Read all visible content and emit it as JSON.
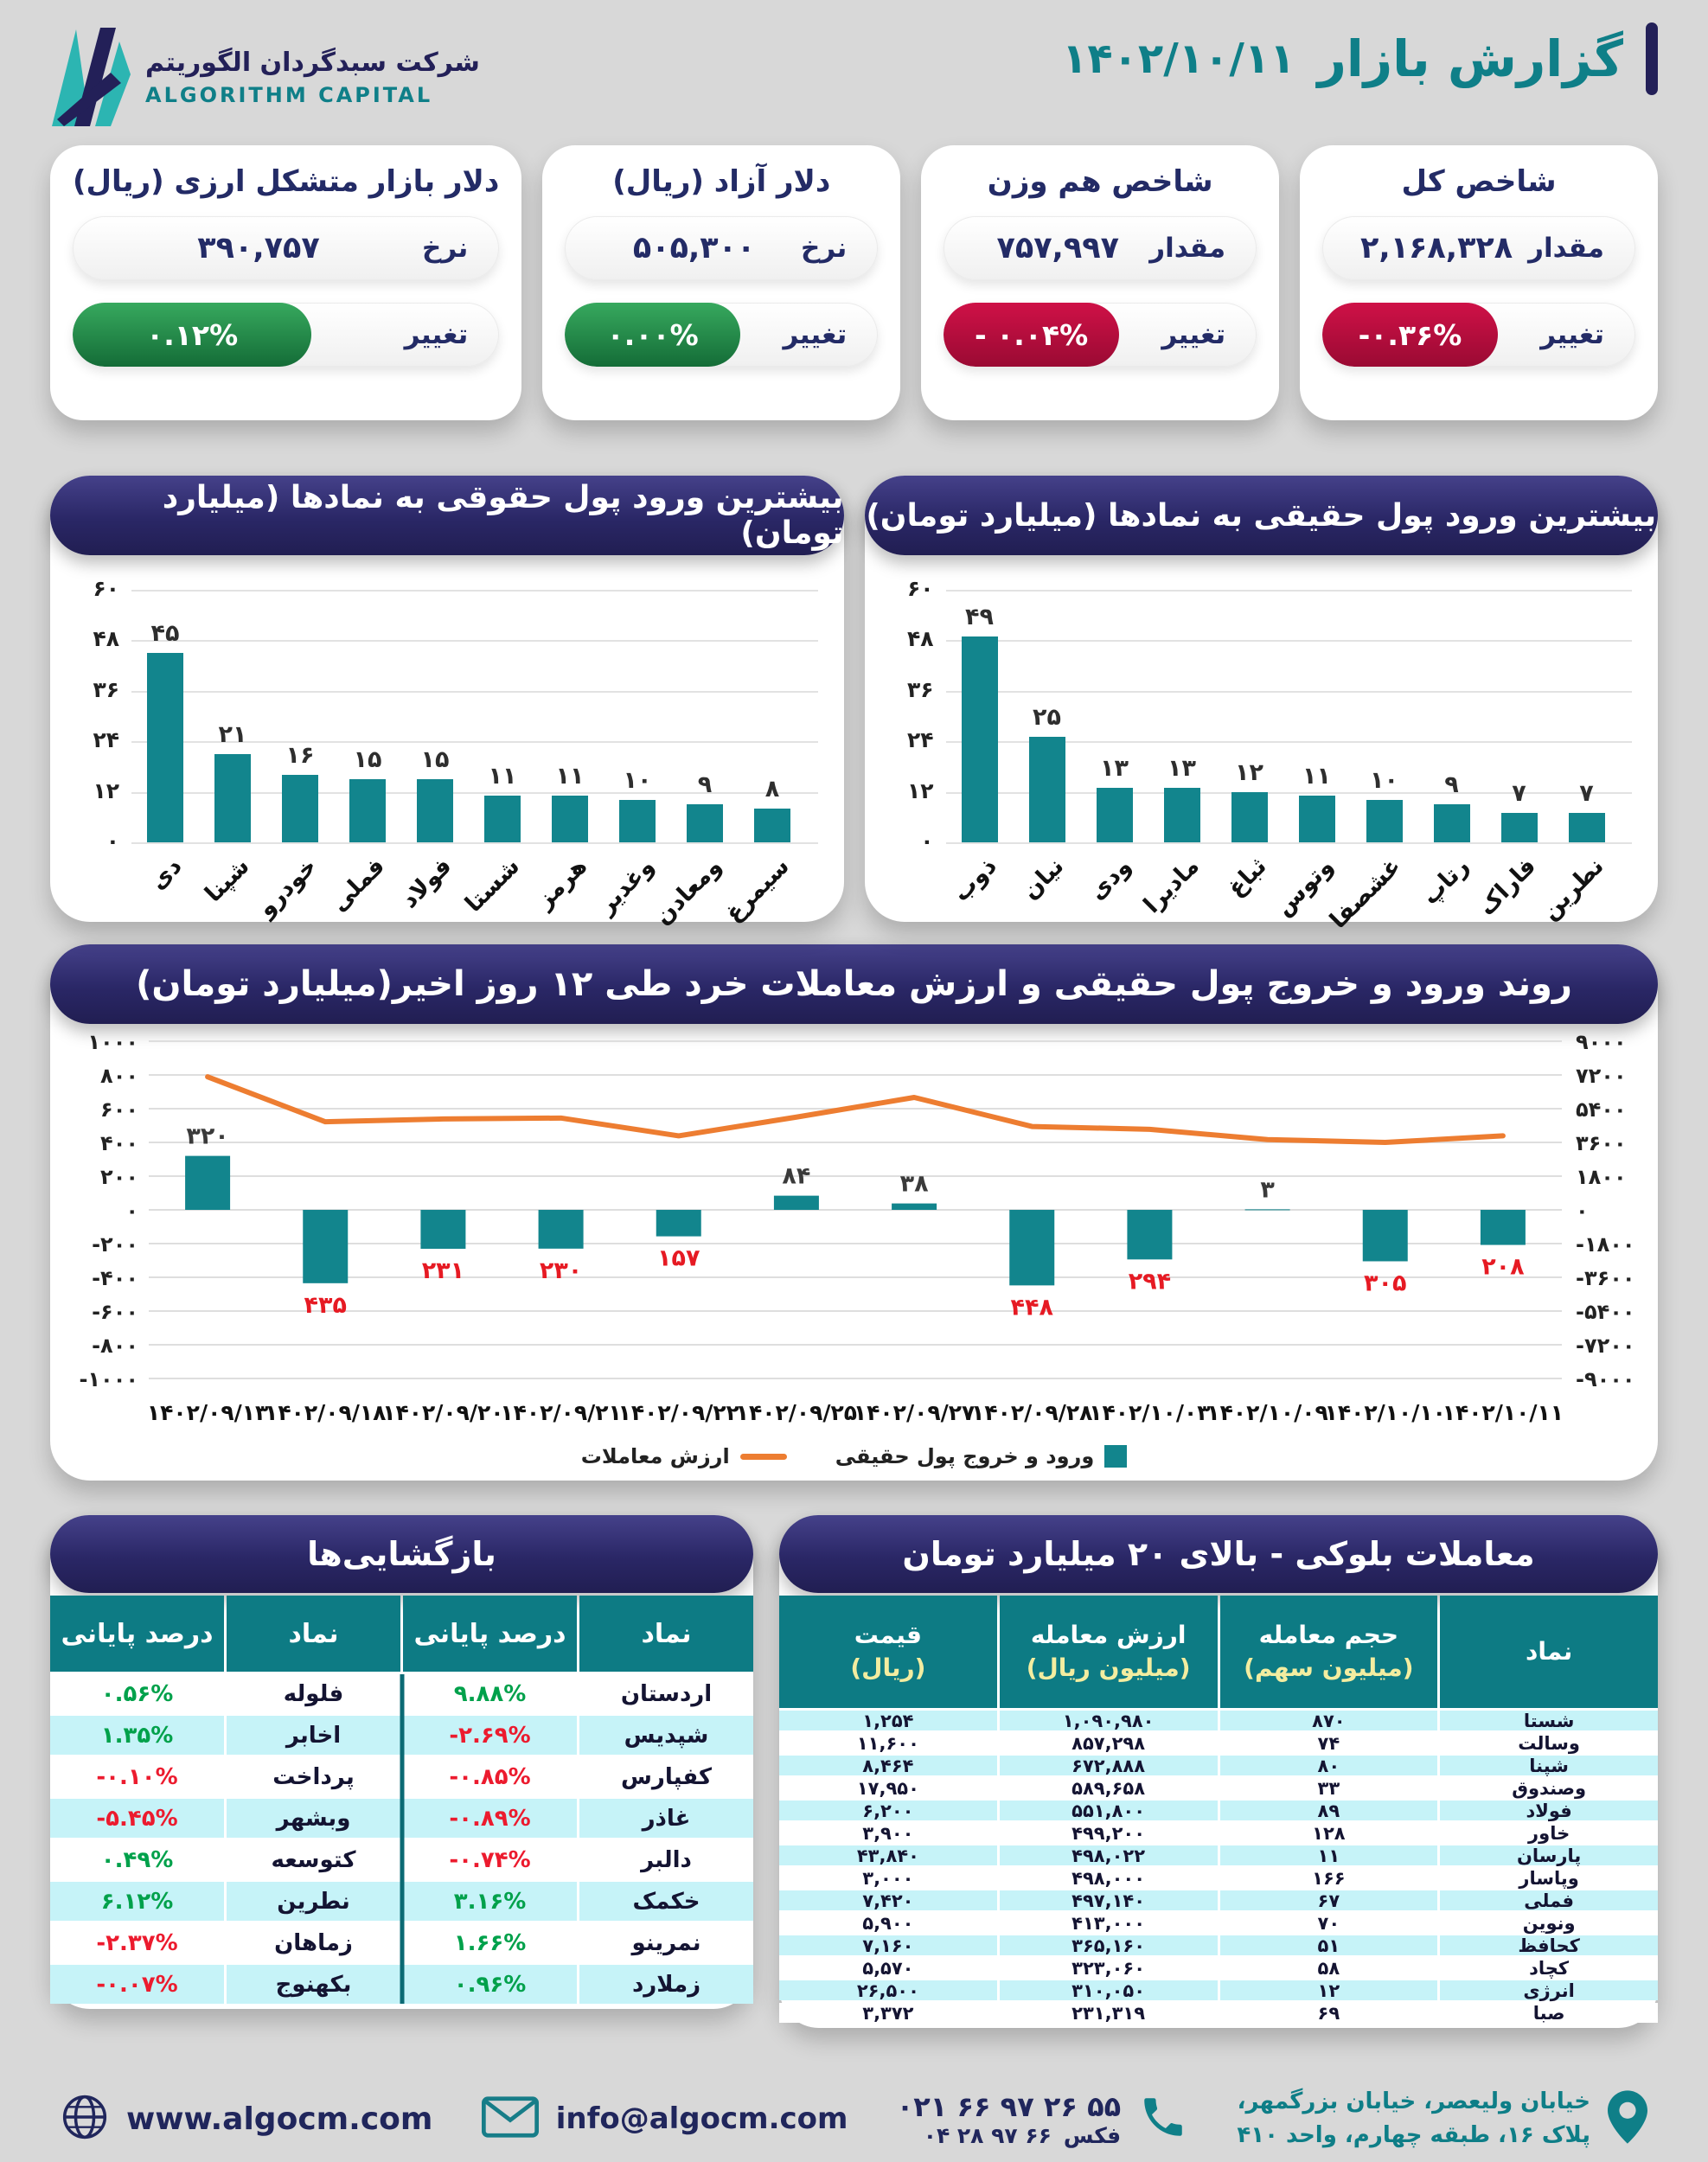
{
  "header": {
    "company_fa": "شرکت سبدگردان الگوریتم",
    "company_en": "ALGORITHM CAPITAL",
    "title": "گزارش بازار",
    "date": "۱۴۰۲/۱۰/۱۱"
  },
  "stat_cards": [
    {
      "title": "شاخص کل",
      "value_label": "مقدار",
      "value": "۲,۱۶۸,۳۲۸",
      "change_label": "تغییر",
      "change": "-۰.۳۶%",
      "direction": "down"
    },
    {
      "title": "شاخص هم وزن",
      "value_label": "مقدار",
      "value": "۷۵۷,۹۹۷",
      "change_label": "تغییر",
      "change": "- ۰.۰۴%",
      "direction": "down"
    },
    {
      "title": "دلار آزاد (ریال)",
      "value_label": "نرخ",
      "value": "۵۰۵,۳۰۰",
      "change_label": "تغییر",
      "change": "۰.۰۰%",
      "direction": "up"
    },
    {
      "title": "دلار بازار متشکل ارزی (ریال)",
      "value_label": "نرخ",
      "value": "۳۹۰,۷۵۷",
      "change_label": "تغییر",
      "change": "۰.۱۲%",
      "direction": "up"
    }
  ],
  "chart_data": [
    {
      "id": "legal-money-inflow",
      "type": "bar",
      "title": "بیشترین ورود پول حقوقی به نمادها (میلیارد تومان)",
      "categories": [
        "دی",
        "شپنا",
        "خودرو",
        "فملی",
        "فولاد",
        "شستا",
        "هرمز",
        "وغدیر",
        "ومعادن",
        "سیمرغ"
      ],
      "values": [
        45,
        21,
        16,
        15,
        15,
        11,
        11,
        10,
        9,
        8
      ],
      "ylim": [
        0,
        60
      ],
      "yticks": [
        60,
        48,
        36,
        24,
        12,
        0
      ],
      "bar_color": "#12858d",
      "grid": true
    },
    {
      "id": "real-money-inflow",
      "type": "bar",
      "title": "بیشترین ورود پول حقیقی به نمادها (میلیارد تومان)",
      "categories": [
        "ذوب",
        "نیان",
        "ودی",
        "مادیرا",
        "ثباغ",
        "وتوس",
        "غشصفا",
        "رتاپ",
        "فاراک",
        "نطرین"
      ],
      "values": [
        49,
        25,
        13,
        13,
        12,
        11,
        10,
        9,
        7,
        7
      ],
      "ylim": [
        0,
        60
      ],
      "yticks": [
        60,
        48,
        36,
        24,
        12,
        0
      ],
      "bar_color": "#12858d",
      "grid": true
    },
    {
      "id": "trend-12-days",
      "type": "bar+line",
      "title": "روند ورود و خروج پول حقیقی و ارزش معاملات خرد طی ۱۲ روز اخیر(میلیارد تومان)",
      "categories": [
        "۱۴۰۲/۰۹/۱۳",
        "۱۴۰۲/۰۹/۱۸",
        "۱۴۰۲/۰۹/۲۰",
        "۱۴۰۲/۰۹/۲۱",
        "۱۴۰۲/۰۹/۲۲",
        "۱۴۰۲/۰۹/۲۵",
        "۱۴۰۲/۰۹/۲۷",
        "۱۴۰۲/۰۹/۲۸",
        "۱۴۰۲/۱۰/۰۳",
        "۱۴۰۲/۱۰/۰۹",
        "۱۴۰۲/۱۰/۱۰",
        "۱۴۰۲/۱۰/۱۱"
      ],
      "series": [
        {
          "name": "ورود و خروج پول حقیقی",
          "type": "bar",
          "axis": "left",
          "values": [
            320,
            -435,
            -231,
            -230,
            -157,
            84,
            38,
            -448,
            -294,
            3,
            -305,
            -208
          ]
        },
        {
          "name": "ارزش معاملات",
          "type": "line",
          "axis": "right",
          "values": [
            7100,
            4700,
            4850,
            4900,
            3950,
            4950,
            6000,
            4450,
            4300,
            3750,
            3600,
            3950
          ]
        }
      ],
      "left_ylim": [
        -1000,
        1000
      ],
      "left_yticks": [
        1000,
        800,
        600,
        400,
        200,
        0,
        -200,
        -400,
        -600,
        -800,
        -1000
      ],
      "right_ylim": [
        -9000,
        9000
      ],
      "right_yticks": [
        9000,
        7200,
        5400,
        3600,
        1800,
        0,
        -1800,
        -3600,
        -5400,
        -7200,
        -9000
      ],
      "bar_color": "#12858d",
      "line_color": "#ed7d31",
      "grid": true,
      "legend_position": "bottom"
    }
  ],
  "reopen_table": {
    "title": "بازگشایی‌ها",
    "col_symbol": "نماد",
    "col_pct": "درصد پایانی",
    "right_rows": [
      {
        "symbol": "اردستان",
        "pct": "۹.۸۸%",
        "direction": "up"
      },
      {
        "symbol": "شپدیس",
        "pct": "-۲.۶۹%",
        "direction": "down"
      },
      {
        "symbol": "کفپارس",
        "pct": "-۰.۸۵%",
        "direction": "down"
      },
      {
        "symbol": "غاذر",
        "pct": "-۰.۸۹%",
        "direction": "down"
      },
      {
        "symbol": "دالبر",
        "pct": "-۰.۷۴%",
        "direction": "down"
      },
      {
        "symbol": "خکمک",
        "pct": "۳.۱۶%",
        "direction": "up"
      },
      {
        "symbol": "نمرینو",
        "pct": "۱.۶۶%",
        "direction": "up"
      },
      {
        "symbol": "زملارد",
        "pct": "۰.۹۶%",
        "direction": "up"
      }
    ],
    "left_rows": [
      {
        "symbol": "فلوله",
        "pct": "۰.۵۶%",
        "direction": "up"
      },
      {
        "symbol": "اخابر",
        "pct": "۱.۳۵%",
        "direction": "up"
      },
      {
        "symbol": "پرداخت",
        "pct": "-۰.۱۰%",
        "direction": "down"
      },
      {
        "symbol": "وبشهر",
        "pct": "-۵.۴۵%",
        "direction": "down"
      },
      {
        "symbol": "کتوسعه",
        "pct": "۰.۴۹%",
        "direction": "up"
      },
      {
        "symbol": "نطرین",
        "pct": "۶.۱۲%",
        "direction": "up"
      },
      {
        "symbol": "زماهان",
        "pct": "-۲.۳۷%",
        "direction": "down"
      },
      {
        "symbol": "بکهنوج",
        "pct": "-۰.۰۷%",
        "direction": "down"
      }
    ]
  },
  "block_table": {
    "title": "معاملات بلوکی - بالای ۲۰ میلیارد تومان",
    "col_symbol": "نماد",
    "col_volume": "حجم معامله",
    "col_volume_unit": "(میلیون سهم)",
    "col_value": "ارزش معامله",
    "col_value_unit": "(میلیون ریال)",
    "col_price": "قیمت",
    "col_price_unit": "(ریال)",
    "rows": [
      {
        "symbol": "شستا",
        "volume": "۸۷۰",
        "value": "۱,۰۹۰,۹۸۰",
        "price": "۱,۲۵۴"
      },
      {
        "symbol": "وسالت",
        "volume": "۷۴",
        "value": "۸۵۷,۲۹۸",
        "price": "۱۱,۶۰۰"
      },
      {
        "symbol": "شپنا",
        "volume": "۸۰",
        "value": "۶۷۲,۸۸۸",
        "price": "۸,۴۶۴"
      },
      {
        "symbol": "وصندوق",
        "volume": "۳۳",
        "value": "۵۸۹,۶۵۸",
        "price": "۱۷,۹۵۰"
      },
      {
        "symbol": "فولاد",
        "volume": "۸۹",
        "value": "۵۵۱,۸۰۰",
        "price": "۶,۲۰۰"
      },
      {
        "symbol": "خاور",
        "volume": "۱۲۸",
        "value": "۴۹۹,۲۰۰",
        "price": "۳,۹۰۰"
      },
      {
        "symbol": "پارسان",
        "volume": "۱۱",
        "value": "۴۹۸,۰۲۲",
        "price": "۴۳,۸۴۰"
      },
      {
        "symbol": "وپاسار",
        "volume": "۱۶۶",
        "value": "۴۹۸,۰۰۰",
        "price": "۳,۰۰۰"
      },
      {
        "symbol": "فملی",
        "volume": "۶۷",
        "value": "۴۹۷,۱۴۰",
        "price": "۷,۴۲۰"
      },
      {
        "symbol": "ونوین",
        "volume": "۷۰",
        "value": "۴۱۳,۰۰۰",
        "price": "۵,۹۰۰"
      },
      {
        "symbol": "کحافظ",
        "volume": "۵۱",
        "value": "۳۶۵,۱۶۰",
        "price": "۷,۱۶۰"
      },
      {
        "symbol": "کچاد",
        "volume": "۵۸",
        "value": "۳۲۳,۰۶۰",
        "price": "۵,۵۷۰"
      },
      {
        "symbol": "انرژی",
        "volume": "۱۲",
        "value": "۳۱۰,۰۵۰",
        "price": "۲۶,۵۰۰"
      },
      {
        "symbol": "صبا",
        "volume": "۶۹",
        "value": "۲۳۱,۳۱۹",
        "price": "۳,۳۷۲"
      }
    ]
  },
  "footer": {
    "website": "www.algocm.com",
    "email": "info@algocm.com",
    "phone": "۰۲۱ ۶۶ ۹۷ ۲۶ ۵۵",
    "fax_label": "فکس",
    "fax_number": "۰۴ ۲۸ ۹۷ ۶۶",
    "address_line1": "خیابان ولیعصر، خیابان بزرگمهر،",
    "address_line2": "پلاک ۱۶، طبقه چهارم، واحد ۴۱۰"
  },
  "colors": {
    "navy": "#232058",
    "teal": "#0f7f88",
    "bar_teal": "#12858d",
    "orange": "#ed7d31",
    "green_text": "#00a14b",
    "red_text": "#ec1b2e",
    "chip_green": "#1d8a47",
    "chip_red": "#b30d3c",
    "row_cyan": "#c6f3f8",
    "table_header_teal": "#0d7b84",
    "background": "#d8d8d8"
  }
}
